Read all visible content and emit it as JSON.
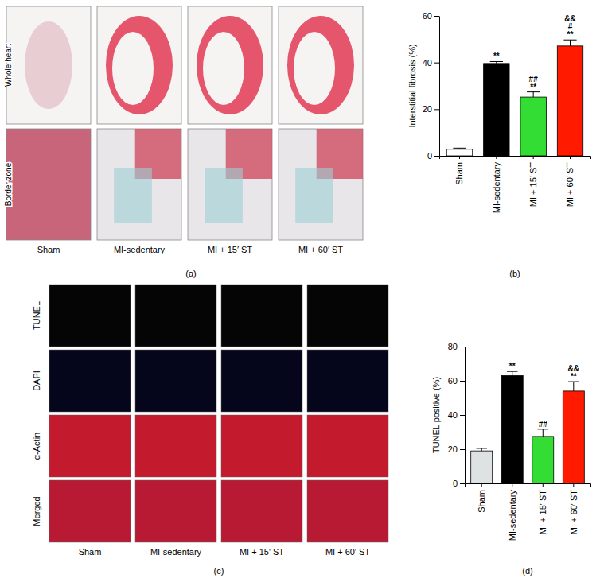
{
  "chart_data": [
    {
      "type": "bar",
      "title": "(b)",
      "y_label": "Interstitial fibrosis (%)",
      "categories": [
        "Sham",
        "MI-sedentary",
        "MI + 15′ ST",
        "MI + 60′ ST"
      ],
      "values": [
        2.8,
        39.6,
        25.2,
        47.1
      ],
      "errors": [
        0.5,
        0.8,
        2.2,
        2.6
      ],
      "annotations": [
        [],
        [
          "**"
        ],
        [
          "##",
          "**"
        ],
        [
          "&&",
          "#",
          "**"
        ]
      ],
      "colors": [
        "#ffffff",
        "#000000",
        "#33dd33",
        "#ff1a00"
      ],
      "ylim": [
        0,
        60
      ],
      "yticks": [
        0,
        20,
        40,
        60
      ]
    },
    {
      "type": "bar",
      "title": "(d)",
      "y_label": "TUNEL positive (%)",
      "categories": [
        "Sham",
        "MI-sedentary",
        "MI + 15′ ST",
        "MI + 60′ ST"
      ],
      "values": [
        19,
        63,
        27.5,
        54
      ],
      "errors": [
        1.5,
        2.5,
        4.2,
        5.5
      ],
      "annotations": [
        [],
        [
          "**"
        ],
        [
          "##"
        ],
        [
          "&&",
          "**"
        ]
      ],
      "colors": [
        "#dfe2e2",
        "#000000",
        "#33dd33",
        "#ff1a00"
      ],
      "ylim": [
        0,
        80
      ],
      "yticks": [
        0,
        20,
        40,
        60,
        80
      ]
    }
  ],
  "image_panels": {
    "a": {
      "label": "(a)",
      "rows": [
        "Whole heart",
        "Border zone"
      ],
      "columns": [
        "Sham",
        "MI-sedentary",
        "MI + 15′ ST",
        "MI + 60′ ST"
      ]
    },
    "c": {
      "label": "(c)",
      "rows": [
        "TUNEL",
        "DAPI",
        "α-Actin",
        "Merged"
      ],
      "columns": [
        "Sham",
        "MI-sedentary",
        "MI + 15′ ST",
        "MI + 60′ ST"
      ]
    }
  }
}
